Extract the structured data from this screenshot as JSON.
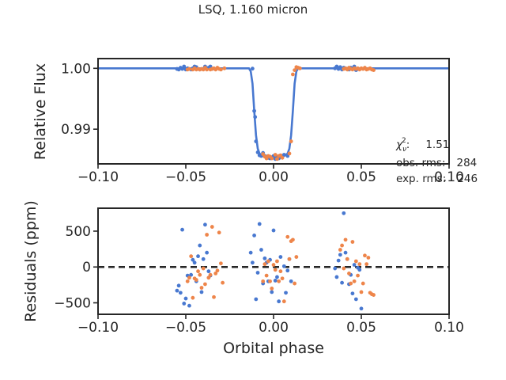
{
  "figure": {
    "title": "LSQ, 1.160 micron",
    "stats": {
      "chi2_label": "χ",
      "chi2_sub": "ν",
      "chi2_sup": "2",
      "chi2_value": "1.51",
      "obs_rms_label": "obs. rms:",
      "obs_rms_value": "284",
      "exp_rms_label": "exp. rms:",
      "exp_rms_value": "246"
    }
  },
  "colors": {
    "series_1": "#4878d0",
    "series_2": "#ee854a",
    "model": "#4878d0",
    "zero_line": "#262626"
  },
  "chart_data": [
    {
      "type": "scatter",
      "panel": "top",
      "xlabel": "",
      "ylabel": "Relative Flux",
      "xlim": [
        -0.1,
        0.1
      ],
      "ylim": [
        0.9843,
        1.0016
      ],
      "xticks": [
        -0.1,
        -0.05,
        0.0,
        0.05,
        0.1
      ],
      "xtick_labels": [
        "−0.10",
        "−0.05",
        "0.00",
        "0.05",
        "0.10"
      ],
      "yticks": [
        0.99,
        1.0
      ],
      "ytick_labels": [
        "0.99",
        "1.00"
      ],
      "grid": false,
      "model": {
        "name": "",
        "x": [
          -0.1,
          -0.014,
          -0.013,
          -0.012,
          -0.011,
          -0.01,
          -0.009,
          -0.008,
          -0.006,
          -0.004,
          0.0,
          0.004,
          0.006,
          0.008,
          0.009,
          0.01,
          0.011,
          0.012,
          0.013,
          0.014,
          0.1
        ],
        "y": [
          1.0,
          1.0,
          0.9995,
          0.9975,
          0.993,
          0.989,
          0.9868,
          0.986,
          0.9856,
          0.9855,
          0.9854,
          0.9855,
          0.9856,
          0.986,
          0.9868,
          0.989,
          0.993,
          0.9975,
          0.9995,
          1.0,
          1.0
        ]
      },
      "series": [
        {
          "name": "",
          "x": [
            -0.055,
            -0.054,
            -0.053,
            -0.052,
            -0.051,
            -0.05,
            -0.049,
            -0.047,
            -0.046,
            -0.045,
            -0.044,
            -0.042,
            -0.04,
            -0.039,
            -0.038,
            -0.037,
            -0.036,
            -0.035,
            -0.012,
            -0.011,
            -0.0105,
            -0.01,
            -0.009,
            -0.008,
            -0.007,
            -0.006,
            -0.005,
            -0.004,
            -0.003,
            -0.002,
            0.0,
            0.001,
            0.002,
            0.003,
            0.004,
            0.006,
            0.008,
            0.035,
            0.036,
            0.037,
            0.038,
            0.039,
            0.04,
            0.041,
            0.042,
            0.043,
            0.044,
            0.045,
            0.046,
            0.047,
            0.048
          ],
          "y": [
            0.9999,
            0.9998,
            1.0001,
            0.9999,
            1.0003,
            0.9998,
            1.0,
            0.9998,
            1.0,
            1.0003,
            1.0002,
            0.9998,
            0.9999,
            1.0003,
            1.0,
            1.0001,
            1.0003,
            0.9999,
            0.99995,
            0.993,
            0.992,
            0.988,
            0.9862,
            0.9857,
            0.9856,
            0.9861,
            0.9856,
            0.9855,
            0.9853,
            0.9852,
            0.9856,
            0.9851,
            0.9855,
            0.9852,
            0.9857,
            0.9858,
            0.9856,
            1.0,
            1.0003,
            0.9999,
            1.0002,
            0.9998,
            1.0001,
            1.0,
            0.9999,
            0.9998,
            1.0001,
            1.0,
            1.0003,
            0.9997,
            0.9999
          ]
        },
        {
          "name": "",
          "x": [
            -0.049,
            -0.048,
            -0.046,
            -0.045,
            -0.044,
            -0.043,
            -0.042,
            -0.041,
            -0.04,
            -0.039,
            -0.038,
            -0.036,
            -0.035,
            -0.034,
            -0.033,
            -0.032,
            -0.031,
            -0.03,
            -0.028,
            -0.006,
            -0.005,
            -0.004,
            -0.003,
            -0.002,
            -0.001,
            0.001,
            0.002,
            0.003,
            0.004,
            0.005,
            0.009,
            0.01,
            0.011,
            0.012,
            0.013,
            0.014,
            0.015,
            0.04,
            0.041,
            0.042,
            0.043,
            0.044,
            0.045,
            0.046,
            0.047,
            0.048,
            0.049,
            0.05,
            0.051,
            0.052,
            0.053,
            0.054,
            0.055,
            0.056,
            0.057
          ],
          "y": [
            0.9998,
            0.9999,
            0.9998,
            1.0,
            0.9998,
            0.9999,
            0.9998,
            0.9999,
            0.9998,
            1.0001,
            0.9998,
            0.9998,
            0.9999,
            1.0,
            0.9998,
            1.0001,
            0.9999,
            0.9998,
            1.0,
            0.9859,
            0.9855,
            0.9852,
            0.9856,
            0.9855,
            0.9852,
            0.9858,
            0.9851,
            0.9856,
            0.9857,
            0.9853,
            0.986,
            0.988,
            0.999,
            0.9997,
            1.0002,
            1.0001,
            1.0,
            0.9999,
            1.0,
            0.9998,
            1.0001,
            0.9999,
            0.9998,
            1.0,
            0.9999,
            1.0,
            0.9998,
            1.0,
            0.9999,
            1.0001,
            0.9998,
            0.9999,
            1.0,
            0.9998,
            0.9997
          ]
        }
      ]
    },
    {
      "type": "scatter",
      "panel": "bottom",
      "xlabel": "Orbital phase",
      "ylabel": "Residuals (ppm)",
      "xlim": [
        -0.1,
        0.1
      ],
      "ylim": [
        -660,
        820
      ],
      "xticks": [
        -0.1,
        -0.05,
        0.0,
        0.05,
        0.1
      ],
      "xtick_labels": [
        "−0.10",
        "−0.05",
        "0.00",
        "0.05",
        "0.10"
      ],
      "yticks": [
        -500,
        0,
        500
      ],
      "ytick_labels": [
        "−500",
        "0",
        "500"
      ],
      "zero_line": 0,
      "grid": false,
      "series": [
        {
          "name": "",
          "x": [
            -0.055,
            -0.054,
            -0.053,
            -0.052,
            -0.051,
            -0.05,
            -0.049,
            -0.048,
            -0.047,
            -0.046,
            -0.045,
            -0.044,
            -0.043,
            -0.042,
            -0.041,
            -0.04,
            -0.039,
            -0.038,
            -0.037,
            -0.036,
            -0.013,
            -0.012,
            -0.011,
            -0.01,
            -0.009,
            -0.008,
            -0.007,
            -0.006,
            -0.005,
            -0.004,
            -0.003,
            -0.002,
            -0.001,
            0.0,
            0.001,
            0.002,
            0.003,
            0.004,
            0.006,
            0.007,
            0.008,
            0.009,
            0.01,
            0.035,
            0.036,
            0.037,
            0.038,
            0.039,
            0.04,
            0.041,
            0.042,
            0.043,
            0.044,
            0.045,
            0.046,
            0.047,
            0.048,
            0.049,
            0.05
          ],
          "y": [
            -330,
            -260,
            -360,
            520,
            -510,
            -440,
            -120,
            -540,
            -110,
            100,
            60,
            -200,
            150,
            300,
            -350,
            110,
            590,
            200,
            -60,
            -120,
            200,
            60,
            440,
            -450,
            -80,
            600,
            240,
            -230,
            120,
            60,
            -200,
            100,
            -350,
            510,
            -190,
            -140,
            -480,
            140,
            10,
            -360,
            -50,
            110,
            -200,
            -20,
            -140,
            90,
            170,
            -220,
            750,
            200,
            110,
            -240,
            -110,
            -370,
            30,
            -450,
            -10,
            -40,
            -580
          ]
        },
        {
          "name": "",
          "x": [
            -0.049,
            -0.048,
            -0.047,
            -0.046,
            -0.045,
            -0.044,
            -0.043,
            -0.042,
            -0.041,
            -0.04,
            -0.039,
            -0.038,
            -0.037,
            -0.036,
            -0.035,
            -0.034,
            -0.033,
            -0.032,
            -0.031,
            -0.03,
            -0.029,
            -0.006,
            -0.005,
            -0.004,
            -0.003,
            -0.002,
            -0.001,
            0.0,
            0.001,
            0.002,
            0.003,
            0.004,
            0.005,
            0.006,
            0.008,
            0.009,
            0.01,
            0.011,
            0.012,
            0.013,
            0.038,
            0.039,
            0.04,
            0.041,
            0.042,
            0.043,
            0.044,
            0.045,
            0.046,
            0.047,
            0.048,
            0.049,
            0.05,
            0.051,
            0.052,
            0.053,
            0.054,
            0.055,
            0.056,
            0.057
          ],
          "y": [
            -200,
            -150,
            150,
            -430,
            -160,
            -180,
            -60,
            -110,
            -290,
            -20,
            -240,
            450,
            -150,
            -110,
            560,
            -420,
            -90,
            -50,
            480,
            50,
            -220,
            -200,
            40,
            -120,
            80,
            -200,
            -300,
            30,
            -40,
            80,
            -200,
            -60,
            -160,
            -480,
            420,
            110,
            360,
            380,
            -230,
            140,
            240,
            300,
            -20,
            380,
            110,
            -90,
            -230,
            350,
            -200,
            80,
            -120,
            40,
            -350,
            -230,
            160,
            40,
            130,
            -360,
            -380,
            -390
          ]
        }
      ]
    }
  ]
}
